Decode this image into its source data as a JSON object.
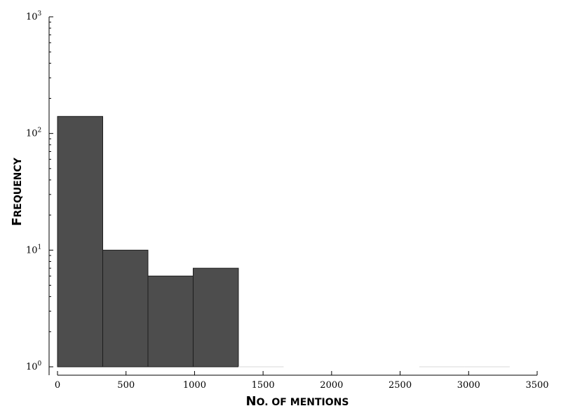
{
  "chart_data": {
    "type": "bar",
    "subtype": "histogram",
    "title": "",
    "xlabel": "No. of mentions",
    "ylabel": "Frequency",
    "y_scale": "log",
    "xlim": [
      0,
      3500
    ],
    "ylim": [
      1,
      1000
    ],
    "grid": false,
    "bar_color": "#4d4d4d",
    "bar_edge_color": "#1e1e1e",
    "bins": [
      {
        "start": 0,
        "end": 330,
        "count": 140
      },
      {
        "start": 330,
        "end": 660,
        "count": 10
      },
      {
        "start": 660,
        "end": 990,
        "count": 6
      },
      {
        "start": 990,
        "end": 1320,
        "count": 7
      },
      {
        "start": 1320,
        "end": 1650,
        "count": 1
      },
      {
        "start": 1650,
        "end": 1980,
        "count": 0
      },
      {
        "start": 1980,
        "end": 2310,
        "count": 0
      },
      {
        "start": 2310,
        "end": 2640,
        "count": 0
      },
      {
        "start": 2640,
        "end": 2970,
        "count": 1
      },
      {
        "start": 2970,
        "end": 3300,
        "count": 1
      }
    ],
    "x_ticks": [
      {
        "value": 0,
        "label": "0"
      },
      {
        "value": 500,
        "label": "500"
      },
      {
        "value": 1000,
        "label": "1000"
      },
      {
        "value": 1500,
        "label": "1500"
      },
      {
        "value": 2000,
        "label": "2000"
      },
      {
        "value": 2500,
        "label": "2500"
      },
      {
        "value": 3000,
        "label": "3000"
      },
      {
        "value": 3500,
        "label": "3500"
      }
    ],
    "y_ticks": [
      {
        "value": 1,
        "base": "10",
        "exp": "0"
      },
      {
        "value": 10,
        "base": "10",
        "exp": "1"
      },
      {
        "value": 100,
        "base": "10",
        "exp": "2"
      },
      {
        "value": 1000,
        "base": "10",
        "exp": "3"
      }
    ]
  }
}
